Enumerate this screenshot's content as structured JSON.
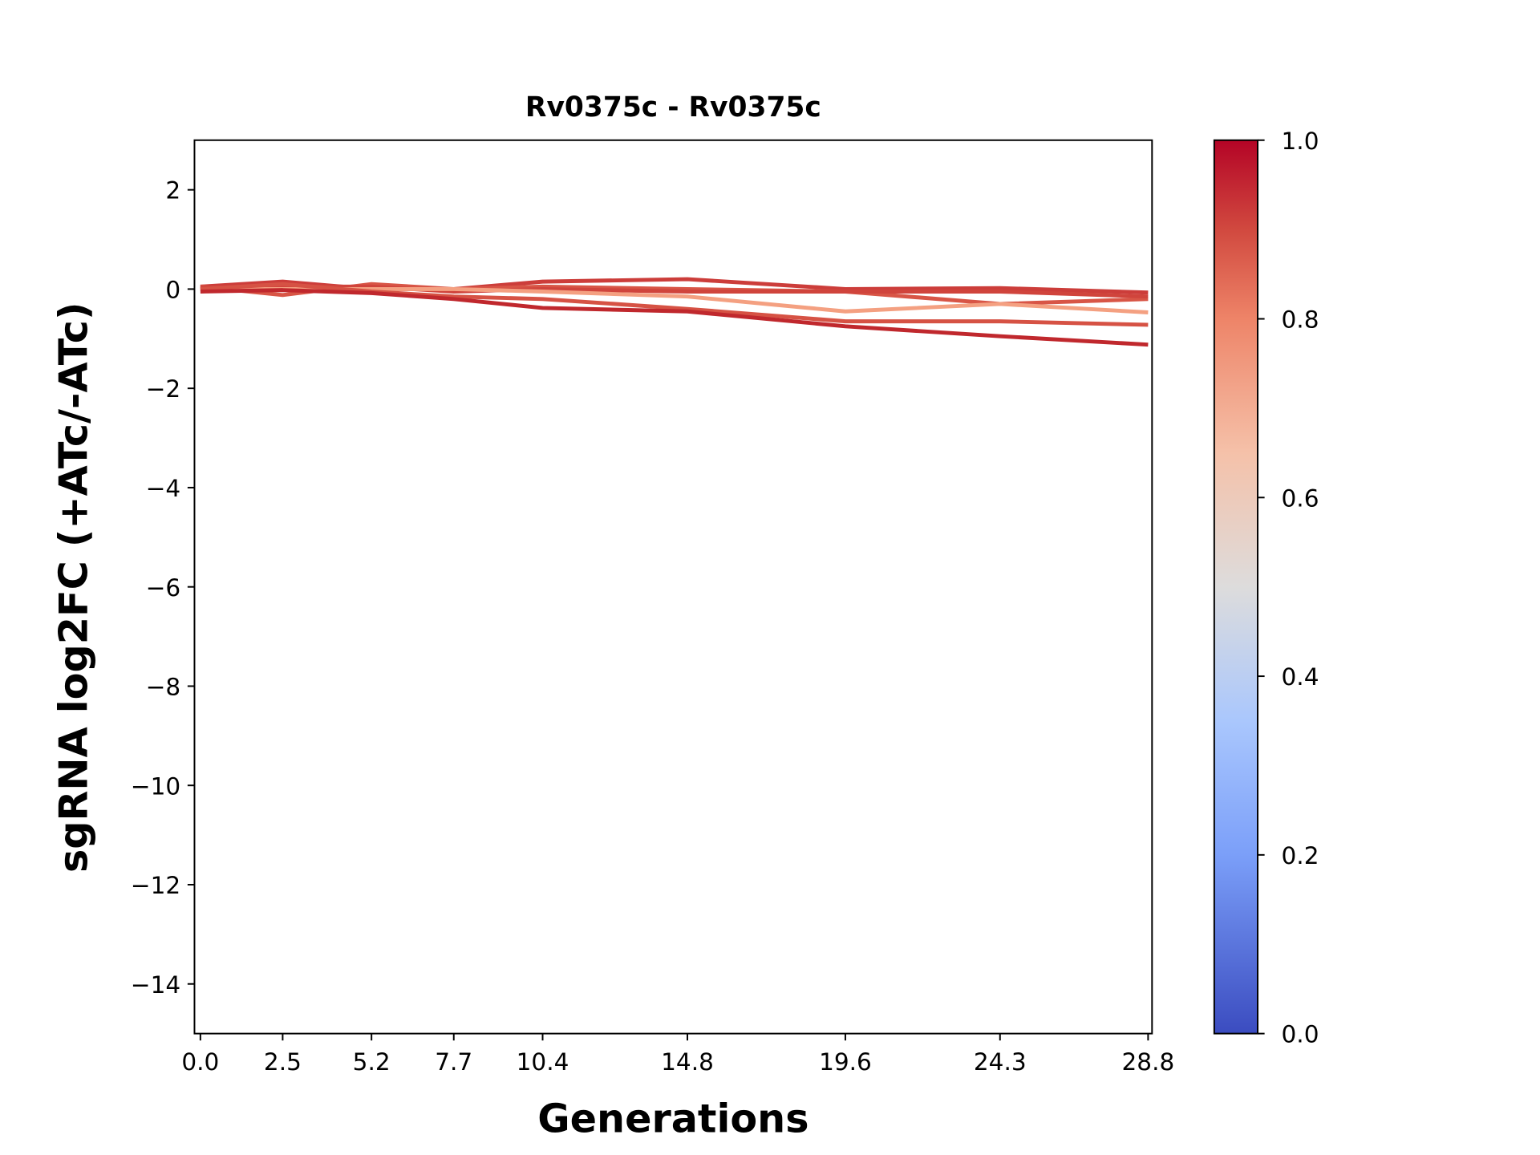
{
  "chart_data": {
    "type": "line",
    "title": "Rv0375c - Rv0375c",
    "xlabel": "Generations",
    "ylabel": "sgRNA log2FC (+ATc/-ATc)",
    "x": [
      0.0,
      2.5,
      5.2,
      7.7,
      10.4,
      14.8,
      19.6,
      24.3,
      28.8
    ],
    "xticks": [
      "0.0",
      "2.5",
      "5.2",
      "7.7",
      "10.4",
      "14.8",
      "19.6",
      "24.3",
      "28.8"
    ],
    "ylim": [
      -15,
      3
    ],
    "xlim": [
      -0.18,
      28.92
    ],
    "yticks": [
      2,
      0,
      -2,
      -4,
      -6,
      -8,
      -10,
      -12,
      -14
    ],
    "ytick_labels": [
      "2",
      "0",
      "−2",
      "−4",
      "−6",
      "−8",
      "−10",
      "−12",
      "−14"
    ],
    "grid": false,
    "series": [
      {
        "color": "#cc3d3a",
        "values": [
          0.05,
          0.15,
          0.0,
          0.0,
          0.15,
          0.2,
          0.0,
          0.02,
          -0.07
        ]
      },
      {
        "color": "#d85546",
        "values": [
          0.05,
          -0.12,
          0.1,
          0.0,
          0.05,
          0.0,
          -0.05,
          -0.3,
          -0.2
        ]
      },
      {
        "color": "#d0443c",
        "values": [
          0.03,
          0.05,
          0.05,
          -0.05,
          0.0,
          -0.05,
          -0.05,
          -0.05,
          -0.15
        ]
      },
      {
        "color": "#f4a081",
        "values": [
          0.0,
          0.0,
          0.0,
          0.0,
          -0.05,
          -0.15,
          -0.45,
          -0.3,
          -0.47
        ]
      },
      {
        "color": "#d65244",
        "values": [
          0.0,
          0.1,
          -0.05,
          -0.15,
          -0.2,
          -0.4,
          -0.65,
          -0.65,
          -0.72
        ]
      },
      {
        "color": "#c0282d",
        "values": [
          -0.05,
          -0.02,
          -0.08,
          -0.2,
          -0.38,
          -0.45,
          -0.75,
          -0.95,
          -1.12
        ]
      }
    ],
    "colorbar": {
      "colormap": "coolwarm",
      "range": [
        0.0,
        1.0
      ],
      "ticks": [
        "0.0",
        "0.2",
        "0.4",
        "0.6",
        "0.8",
        "1.0"
      ]
    }
  }
}
